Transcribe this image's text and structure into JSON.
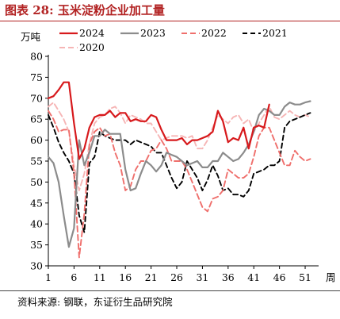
{
  "figure": {
    "title": "图表 28: 玉米淀粉企业加工量",
    "source": "资料来源: 钢联，东证衍生品研究院"
  },
  "chart_data": {
    "type": "line",
    "ylabel": "万吨",
    "xlabel": "周",
    "ylim": [
      30,
      80
    ],
    "yticks": [
      30,
      35,
      40,
      45,
      50,
      55,
      60,
      65,
      70,
      75,
      80
    ],
    "xlim": [
      1,
      53
    ],
    "xticks": [
      1,
      6,
      11,
      16,
      21,
      26,
      31,
      36,
      41,
      46,
      51
    ],
    "grid": false,
    "legend": "top",
    "series": [
      {
        "name": "2024",
        "color": "#d7191c",
        "dash": "solid",
        "width": 2.2,
        "x": [
          1,
          2,
          3,
          4,
          5,
          6,
          7,
          8,
          9,
          10,
          11,
          12,
          13,
          14,
          15,
          16,
          17,
          18,
          19,
          20,
          21,
          22,
          23,
          24,
          25,
          26,
          27,
          28,
          29,
          30,
          31,
          32,
          33,
          34,
          35,
          36,
          37,
          38,
          39,
          40,
          41,
          42,
          43,
          44
        ],
        "values": [
          70,
          70.5,
          72,
          73.8,
          73.8,
          64,
          55.5,
          58,
          63,
          65.5,
          66,
          66,
          67,
          65.5,
          66.5,
          66.5,
          64.5,
          65,
          64.5,
          64.5,
          66,
          65.5,
          62.5,
          60,
          60,
          60,
          60.5,
          59,
          60,
          60,
          60.5,
          61,
          62,
          67,
          64.5,
          59.5,
          60.5,
          60,
          63,
          58,
          63,
          63.5,
          63,
          68.5
        ]
      },
      {
        "name": "2023",
        "color": "#8c8c8c",
        "dash": "solid",
        "width": 2.2,
        "x": [
          1,
          2,
          3,
          4,
          5,
          6,
          7,
          8,
          9,
          10,
          11,
          12,
          13,
          14,
          15,
          16,
          17,
          18,
          19,
          20,
          21,
          22,
          23,
          24,
          25,
          26,
          27,
          28,
          29,
          30,
          31,
          32,
          33,
          34,
          35,
          36,
          37,
          38,
          39,
          40,
          41,
          42,
          43,
          44,
          45,
          46,
          47,
          48,
          49,
          50,
          51,
          52
        ],
        "values": [
          56,
          54.5,
          50,
          42,
          34.5,
          39,
          60,
          54,
          57,
          61,
          61,
          62.5,
          61.5,
          61.5,
          61.5,
          53,
          48,
          48.5,
          52,
          55,
          54,
          52.5,
          54,
          57,
          56.5,
          56,
          55,
          54,
          54.5,
          55,
          53.5,
          53.5,
          55,
          55,
          57,
          56,
          55,
          55.5,
          57,
          59,
          62,
          66,
          67.5,
          67,
          66,
          66,
          68,
          69,
          68.5,
          68.5,
          69,
          69.3
        ]
      },
      {
        "name": "2022",
        "color": "#ef6f6c",
        "dash": "7,4",
        "width": 1.9,
        "x": [
          1,
          2,
          3,
          4,
          5,
          6,
          7,
          8,
          9,
          10,
          11,
          12,
          13,
          14,
          15,
          16,
          17,
          18,
          19,
          20,
          21,
          22,
          23,
          24,
          25,
          26,
          27,
          28,
          29,
          30,
          31,
          32,
          33,
          34,
          35,
          36,
          37,
          38,
          39,
          40,
          41,
          42,
          43,
          44,
          45,
          46,
          47,
          48,
          49,
          50,
          51,
          52
        ],
        "values": [
          67,
          65,
          62,
          62.5,
          62.5,
          52,
          32,
          42.5,
          59,
          62,
          63,
          61,
          61.5,
          57,
          54,
          48,
          49,
          53,
          55,
          55,
          57.5,
          58,
          60,
          58,
          55,
          55,
          55,
          53,
          50,
          47,
          44,
          43,
          46,
          46.5,
          48,
          53,
          52,
          51,
          51,
          52,
          56,
          61,
          63,
          63,
          60,
          57,
          54,
          54,
          57.5,
          56,
          55,
          55.5
        ]
      },
      {
        "name": "2021",
        "color": "#000000",
        "dash": "6,4",
        "width": 1.9,
        "x": [
          1,
          2,
          3,
          4,
          5,
          6,
          7,
          8,
          9,
          10,
          11,
          12,
          13,
          14,
          15,
          16,
          17,
          18,
          19,
          20,
          21,
          22,
          23,
          24,
          25,
          26,
          27,
          28,
          29,
          30,
          31,
          32,
          33,
          34,
          35,
          36,
          37,
          38,
          39,
          40,
          41,
          42,
          43,
          44,
          45,
          46,
          47,
          48,
          49,
          50,
          51,
          52
        ],
        "values": [
          66,
          63,
          59.5,
          57,
          55,
          52,
          42,
          38,
          54.5,
          56,
          62,
          61,
          60.5,
          60,
          60,
          60,
          59,
          60,
          59.5,
          59,
          58.5,
          57,
          57,
          54,
          51,
          48.5,
          50,
          55,
          53,
          51,
          48,
          50.5,
          54,
          51.5,
          48,
          48.5,
          47,
          47,
          46.5,
          48,
          52,
          52.5,
          53,
          54,
          54,
          55,
          63,
          64.5,
          65,
          65.5,
          66,
          66.5
        ]
      },
      {
        "name": "2020",
        "color": "#f6b5b5",
        "dash": "7,4",
        "width": 1.9,
        "x": [
          1,
          2,
          3,
          4,
          5,
          6,
          7,
          8,
          9,
          10,
          11,
          12,
          13,
          14,
          15,
          16,
          17,
          18,
          19,
          20,
          21,
          22,
          23,
          24,
          25,
          26,
          27,
          28,
          29,
          30,
          31,
          32,
          33,
          34,
          35,
          36,
          37,
          38,
          39,
          40,
          41,
          42,
          43,
          44,
          45,
          46,
          47,
          48,
          49,
          50,
          51,
          52
        ],
        "values": [
          68,
          69,
          67,
          65,
          62,
          54,
          48,
          52,
          59,
          64,
          65.5,
          66,
          67.5,
          68,
          66.5,
          64,
          66,
          65.5,
          65,
          64,
          64,
          62,
          60,
          60.5,
          61,
          61,
          61,
          60.5,
          61,
          58,
          58,
          60,
          63,
          66,
          65,
          64,
          65.5,
          66,
          64,
          65,
          62,
          64,
          66,
          68,
          65.5,
          65,
          66,
          67,
          66,
          65.5,
          66,
          65.5
        ]
      }
    ]
  }
}
